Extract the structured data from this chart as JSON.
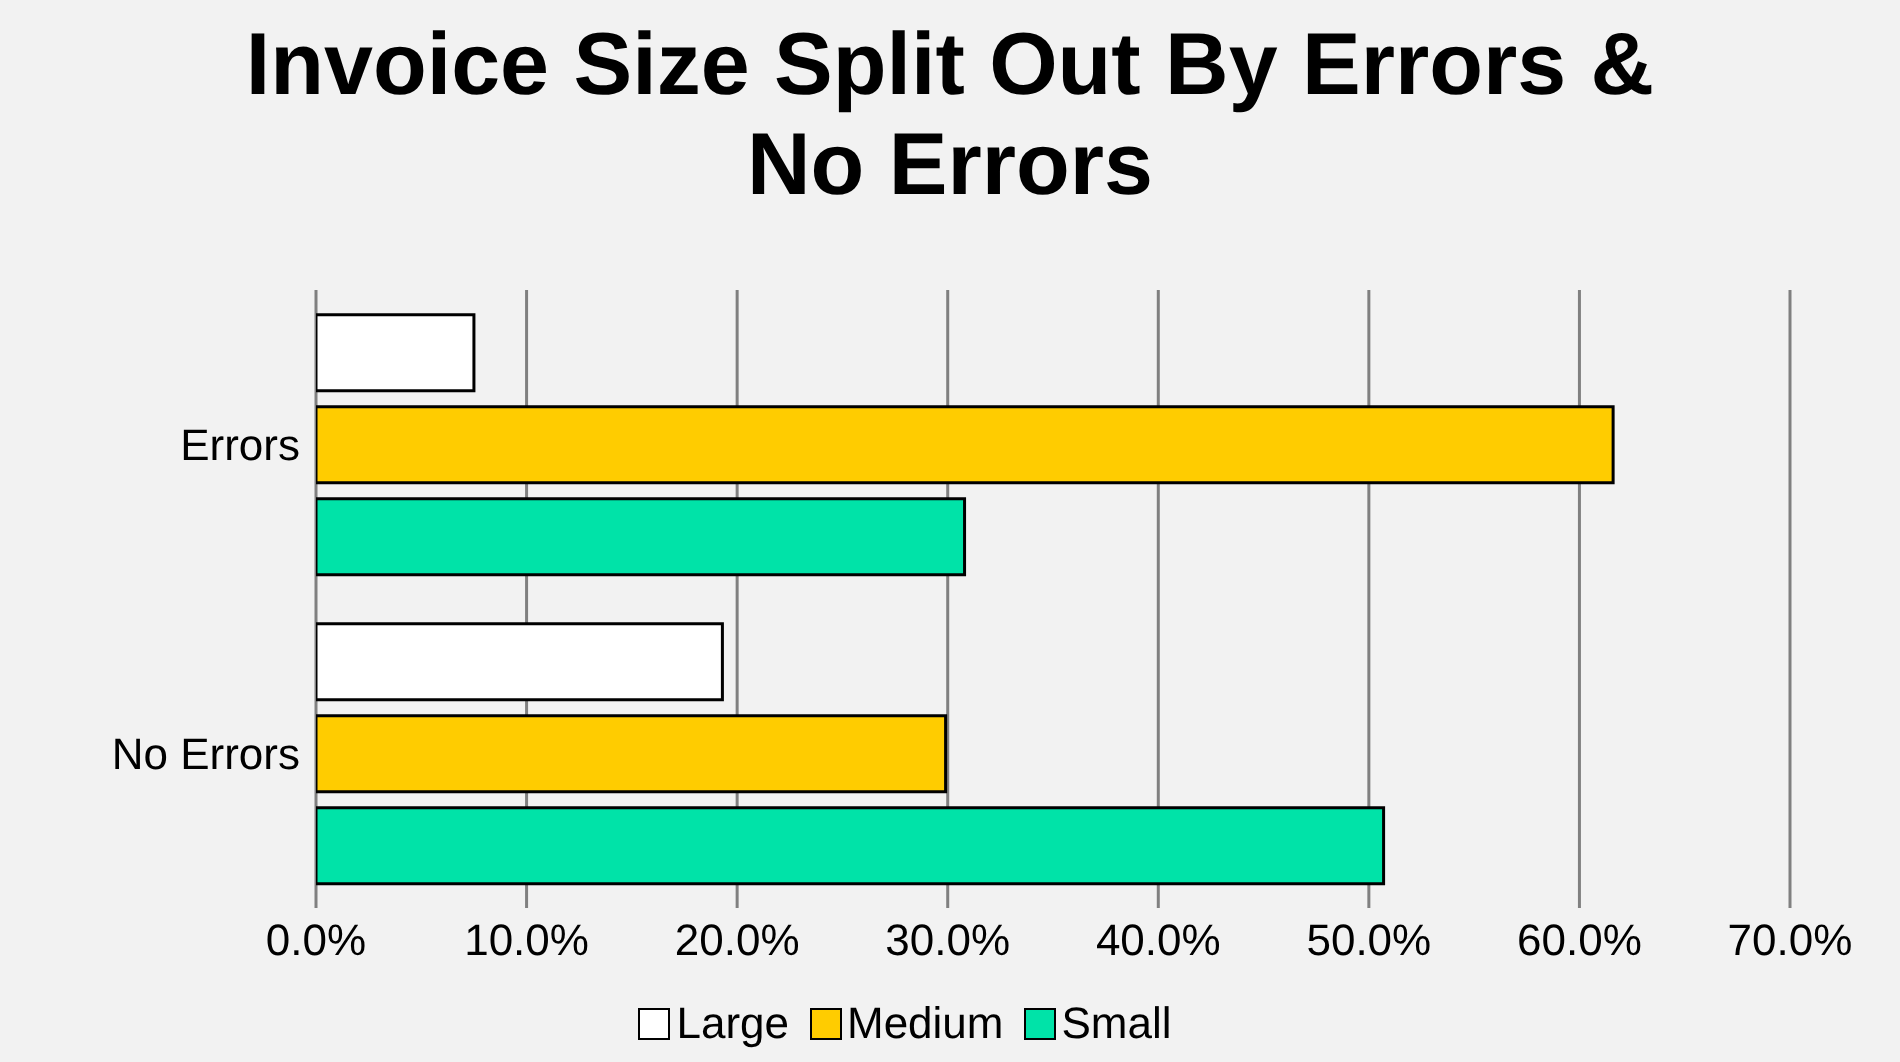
{
  "chart_data": {
    "type": "bar",
    "orientation": "horizontal",
    "title": "Invoice Size Split Out By Errors & No Errors",
    "categories": [
      "Errors",
      "No Errors"
    ],
    "series": [
      {
        "name": "Large",
        "color": "#ffffff",
        "values": [
          7.5,
          19.3
        ]
      },
      {
        "name": "Medium",
        "color": "#ffcc00",
        "values": [
          61.6,
          29.9
        ]
      },
      {
        "name": "Small",
        "color": "#00e3a8",
        "values": [
          30.8,
          50.7
        ]
      }
    ],
    "xlim": [
      0,
      70
    ],
    "xticks": [
      {
        "value": 0,
        "label": "0.0%"
      },
      {
        "value": 10,
        "label": "10.0%"
      },
      {
        "value": 20,
        "label": "20.0%"
      },
      {
        "value": 30,
        "label": "30.0%"
      },
      {
        "value": 40,
        "label": "40.0%"
      },
      {
        "value": 50,
        "label": "50.0%"
      },
      {
        "value": 60,
        "label": "60.0%"
      },
      {
        "value": 70,
        "label": "70.0%"
      }
    ],
    "grid": "x",
    "legend": "bottom"
  }
}
